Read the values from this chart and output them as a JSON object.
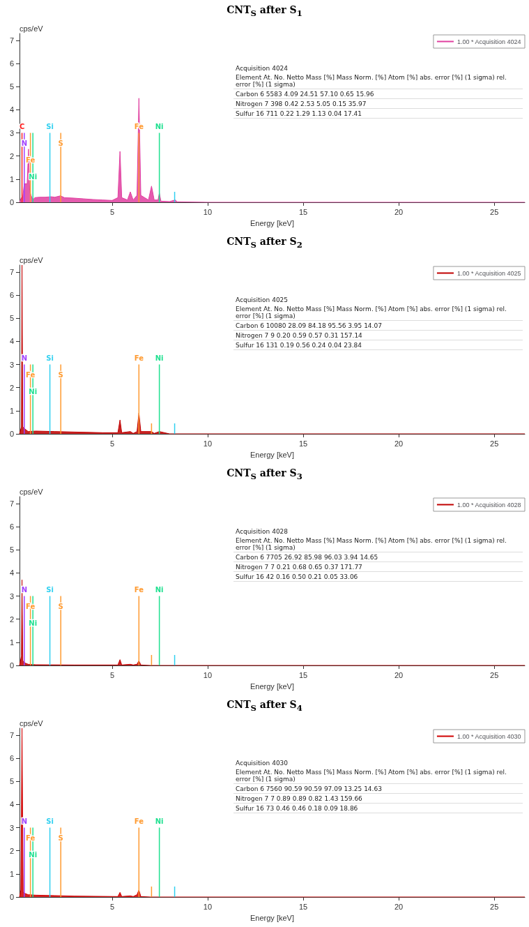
{
  "chart_data": [
    {
      "type": "area",
      "title": "CNT$_{S}$ after S$_{1}$",
      "xlabel": "Energy [keV]",
      "ylabel": "cps/eV",
      "xlim": [
        0.15,
        26.6
      ],
      "xticks": [
        5,
        10,
        15,
        20,
        25
      ],
      "ylim": [
        0,
        7.3
      ],
      "yticks": [
        0,
        1,
        2,
        3,
        4,
        5,
        6,
        7
      ],
      "grid": false,
      "legend": "top right",
      "series": [
        {
          "name": "1.00 * Acquisition 4024",
          "color": "#e040a0",
          "x": [
            0.15,
            0.25,
            0.3,
            0.4,
            0.55,
            0.62,
            0.68,
            0.75,
            0.85,
            0.95,
            1.2,
            1.5,
            1.8,
            2.0,
            2.3,
            2.5,
            3,
            3.5,
            4,
            4.5,
            5.0,
            5.3,
            5.41,
            5.5,
            5.8,
            5.95,
            6.1,
            6.3,
            6.4,
            6.5,
            6.9,
            7.06,
            7.2,
            7.4,
            7.47,
            7.55,
            8,
            8.3,
            8.4,
            10,
            26.6
          ],
          "values": [
            0,
            0.2,
            0.1,
            0.8,
            0.8,
            2.3,
            0.5,
            0.3,
            0.1,
            0.2,
            0.22,
            0.22,
            0.24,
            0.22,
            0.28,
            0.2,
            0.18,
            0.15,
            0.12,
            0.1,
            0.08,
            0.2,
            2.2,
            0.2,
            0.1,
            0.45,
            0.1,
            0.3,
            4.5,
            0.3,
            0.1,
            0.7,
            0.1,
            0.1,
            0.4,
            0.05,
            0.03,
            0.1,
            0.02,
            0,
            0
          ]
        },
        {
          "type": "line",
          "name": "C",
          "color": "#ff2020",
          "x": [
            0.28,
            0.28
          ],
          "values": [
            0,
            3
          ]
        },
        {
          "type": "line",
          "name": "N",
          "color": "#a040ff",
          "x": [
            0.4,
            0.4
          ],
          "values": [
            0,
            3
          ]
        },
        {
          "type": "line",
          "name": "Fe",
          "color": "#ff9a30",
          "x": [
            0.72,
            0.72
          ],
          "values": [
            0,
            3
          ]
        },
        {
          "type": "line",
          "name": "Ni",
          "color": "#20e090",
          "x": [
            0.85,
            0.85
          ],
          "values": [
            0,
            3
          ]
        },
        {
          "type": "line",
          "name": "Si",
          "color": "#30d0f0",
          "x": [
            1.74,
            1.74
          ],
          "values": [
            0,
            3
          ]
        },
        {
          "type": "line",
          "name": "S",
          "color": "#ff9a30",
          "x": [
            2.31,
            2.31
          ],
          "values": [
            0,
            3
          ]
        },
        {
          "type": "line",
          "name": "Fe",
          "color": "#ff9a30",
          "x": [
            6.4,
            6.4
          ],
          "values": [
            0,
            3
          ]
        },
        {
          "type": "line",
          "name": "Ni",
          "color": "#20e090",
          "x": [
            7.47,
            7.47
          ],
          "values": [
            0,
            3
          ]
        },
        {
          "type": "line",
          "color": "#30d0f0",
          "x": [
            8.27,
            8.27
          ],
          "values": [
            0,
            0.45
          ]
        }
      ],
      "annotations": [
        "Acquisition 4024",
        "Element At. No. Netto Mass [%] Mass Norm. [%] Atom [%] abs. error [%] (1 sigma) rel. error [%] (1 sigma)",
        "Carbon 6 5583 4.09 24.51 57.10 0.65 15.96",
        "Nitrogen 7 398 0.42 2.53 5.05 0.15 35.97",
        "Sulfur 16 711 0.22 1.29 1.13 0.04 17.41"
      ]
    },
    {
      "type": "area",
      "title": "CNT$_{S}$ after S$_{2}$",
      "xlabel": "Energy [keV]",
      "ylabel": "cps/eV",
      "xlim": [
        0.15,
        26.6
      ],
      "xticks": [
        5,
        10,
        15,
        20,
        25
      ],
      "ylim": [
        0,
        7.3
      ],
      "yticks": [
        0,
        1,
        2,
        3,
        4,
        5,
        6,
        7
      ],
      "grid": false,
      "legend": "top right",
      "series": [
        {
          "name": "1.00 * Acquisition 4025",
          "color": "#c00000",
          "x": [
            0.15,
            0.25,
            0.28,
            0.32,
            0.45,
            0.6,
            1,
            2,
            3,
            4.5,
            5.3,
            5.41,
            5.5,
            5.95,
            6.1,
            6.3,
            6.4,
            6.5,
            7.06,
            7.2,
            7.47,
            8,
            26.6
          ],
          "values": [
            0,
            0.3,
            7.3,
            0.3,
            0.2,
            0.1,
            0.12,
            0.1,
            0.08,
            0.05,
            0.05,
            0.6,
            0.05,
            0.1,
            0.02,
            0.1,
            0.9,
            0.1,
            0.1,
            0.02,
            0.1,
            0,
            0
          ]
        },
        {
          "type": "line",
          "name": "N",
          "color": "#a040ff",
          "x": [
            0.4,
            0.4
          ],
          "values": [
            0,
            3
          ]
        },
        {
          "type": "line",
          "name": "Fe",
          "color": "#ff9a30",
          "x": [
            0.72,
            0.72
          ],
          "values": [
            0,
            3
          ]
        },
        {
          "type": "line",
          "name": "Ni",
          "color": "#20e090",
          "x": [
            0.85,
            0.85
          ],
          "values": [
            0,
            3
          ]
        },
        {
          "type": "line",
          "name": "Si",
          "color": "#30d0f0",
          "x": [
            1.74,
            1.74
          ],
          "values": [
            0,
            3
          ]
        },
        {
          "type": "line",
          "name": "S",
          "color": "#ff9a30",
          "x": [
            2.31,
            2.31
          ],
          "values": [
            0,
            3
          ]
        },
        {
          "type": "line",
          "name": "Fe",
          "color": "#ff9a30",
          "x": [
            6.4,
            6.4
          ],
          "values": [
            0,
            3
          ]
        },
        {
          "type": "line",
          "name": "Ni",
          "color": "#20e090",
          "x": [
            7.47,
            7.47
          ],
          "values": [
            0,
            3
          ]
        },
        {
          "type": "line",
          "color": "#ff9a30",
          "x": [
            7.06,
            7.06
          ],
          "values": [
            0,
            0.45
          ]
        },
        {
          "type": "line",
          "color": "#30d0f0",
          "x": [
            8.27,
            8.27
          ],
          "values": [
            0,
            0.45
          ]
        }
      ],
      "annotations": [
        "Acquisition 4025",
        "Element At. No. Netto Mass [%] Mass Norm. [%] Atom [%] abs. error [%] (1 sigma) rel. error [%] (1 sigma)",
        "Carbon 6 10080 28.09 84.18 95.56 3.95 14.07",
        "Nitrogen 7 9 0.20 0.59 0.57 0.31 157.14",
        "Sulfur 16 131 0.19 0.56 0.24 0.04 23.84"
      ]
    },
    {
      "type": "area",
      "title": "CNT$_{S}$ after S$_{3}$",
      "xlabel": "Energy [keV]",
      "ylabel": "cps/eV",
      "xlim": [
        0.15,
        26.6
      ],
      "xticks": [
        5,
        10,
        15,
        20,
        25
      ],
      "ylim": [
        0,
        7.3
      ],
      "yticks": [
        0,
        1,
        2,
        3,
        4,
        5,
        6,
        7
      ],
      "grid": false,
      "legend": "top right",
      "series": [
        {
          "name": "1.00 * Acquisition 4028",
          "color": "#c00000",
          "x": [
            0.15,
            0.25,
            0.28,
            0.32,
            0.45,
            0.6,
            1,
            3,
            5.3,
            5.41,
            5.5,
            5.95,
            6.1,
            6.3,
            6.4,
            6.5,
            7,
            26.6
          ],
          "values": [
            0,
            0.4,
            3.7,
            0.2,
            0.1,
            0.05,
            0.03,
            0.02,
            0.02,
            0.25,
            0.02,
            0.05,
            0.02,
            0.05,
            0.2,
            0.02,
            0,
            0
          ]
        },
        {
          "type": "line",
          "name": "N",
          "color": "#a040ff",
          "x": [
            0.4,
            0.4
          ],
          "values": [
            0,
            3
          ]
        },
        {
          "type": "line",
          "name": "Fe",
          "color": "#ff9a30",
          "x": [
            0.72,
            0.72
          ],
          "values": [
            0,
            3
          ]
        },
        {
          "type": "line",
          "name": "Ni",
          "color": "#20e090",
          "x": [
            0.85,
            0.85
          ],
          "values": [
            0,
            3
          ]
        },
        {
          "type": "line",
          "name": "Si",
          "color": "#30d0f0",
          "x": [
            1.74,
            1.74
          ],
          "values": [
            0,
            3
          ]
        },
        {
          "type": "line",
          "name": "S",
          "color": "#ff9a30",
          "x": [
            2.31,
            2.31
          ],
          "values": [
            0,
            3
          ]
        },
        {
          "type": "line",
          "name": "Fe",
          "color": "#ff9a30",
          "x": [
            6.4,
            6.4
          ],
          "values": [
            0,
            3
          ]
        },
        {
          "type": "line",
          "name": "Ni",
          "color": "#20e090",
          "x": [
            7.47,
            7.47
          ],
          "values": [
            0,
            3
          ]
        },
        {
          "type": "line",
          "color": "#ff9a30",
          "x": [
            7.06,
            7.06
          ],
          "values": [
            0,
            0.45
          ]
        },
        {
          "type": "line",
          "color": "#30d0f0",
          "x": [
            8.27,
            8.27
          ],
          "values": [
            0,
            0.45
          ]
        }
      ],
      "annotations": [
        "Acquisition 4028",
        "Element At. No. Netto Mass [%] Mass Norm. [%] Atom [%] abs. error [%] (1 sigma) rel. error [%] (1 sigma)",
        "Carbon 6 7705 26.92 85.98 96.03 3.94 14.65",
        "Nitrogen 7 7 0.21 0.68 0.65 0.37 171.77",
        "Sulfur 16 42 0.16 0.50 0.21 0.05 33.06"
      ]
    },
    {
      "type": "area",
      "title": "CNT$_{S}$ after S$_{4}$",
      "xlabel": "Energy [keV]",
      "ylabel": "cps/eV",
      "xlim": [
        0.15,
        26.6
      ],
      "xticks": [
        5,
        10,
        15,
        20,
        25
      ],
      "ylim": [
        0,
        7.3
      ],
      "yticks": [
        0,
        1,
        2,
        3,
        4,
        5,
        6,
        7
      ],
      "grid": false,
      "legend": "top right",
      "series": [
        {
          "name": "1.00 * Acquisition 4030",
          "color": "#d00000",
          "x": [
            0.15,
            0.22,
            0.28,
            0.34,
            0.45,
            0.6,
            1,
            2,
            3,
            5.3,
            5.41,
            5.5,
            5.95,
            6.1,
            6.3,
            6.4,
            6.5,
            7,
            26.6
          ],
          "values": [
            0,
            0.3,
            7.3,
            0.2,
            0.15,
            0.1,
            0.08,
            0.06,
            0.04,
            0.02,
            0.2,
            0.02,
            0.05,
            0.02,
            0.1,
            0.3,
            0.02,
            0,
            0
          ]
        },
        {
          "type": "line",
          "name": "N",
          "color": "#a040ff",
          "x": [
            0.4,
            0.4
          ],
          "values": [
            0,
            3
          ]
        },
        {
          "type": "line",
          "name": "Fe",
          "color": "#ff9a30",
          "x": [
            0.72,
            0.72
          ],
          "values": [
            0,
            3
          ]
        },
        {
          "type": "line",
          "name": "Ni",
          "color": "#20e090",
          "x": [
            0.85,
            0.85
          ],
          "values": [
            0,
            3
          ]
        },
        {
          "type": "line",
          "name": "Si",
          "color": "#30d0f0",
          "x": [
            1.74,
            1.74
          ],
          "values": [
            0,
            3
          ]
        },
        {
          "type": "line",
          "name": "S",
          "color": "#ff9a30",
          "x": [
            2.31,
            2.31
          ],
          "values": [
            0,
            3
          ]
        },
        {
          "type": "line",
          "name": "Fe",
          "color": "#ff9a30",
          "x": [
            6.4,
            6.4
          ],
          "values": [
            0,
            3
          ]
        },
        {
          "type": "line",
          "name": "Ni",
          "color": "#20e090",
          "x": [
            7.47,
            7.47
          ],
          "values": [
            0,
            3
          ]
        },
        {
          "type": "line",
          "color": "#ff9a30",
          "x": [
            7.06,
            7.06
          ],
          "values": [
            0,
            0.45
          ]
        },
        {
          "type": "line",
          "color": "#30d0f0",
          "x": [
            8.27,
            8.27
          ],
          "values": [
            0,
            0.45
          ]
        }
      ],
      "annotations": [
        "Acquisition 4030",
        "Element At. No. Netto Mass [%] Mass Norm. [%] Atom [%] abs. error [%] (1 sigma) rel. error [%] (1 sigma)",
        "Carbon 6 7560 90.59 90.59 97.09 13.25 14.63",
        "Nitrogen 7 7 0.89 0.89 0.82 1.43 159.66",
        "Sulfur 16 73 0.46 0.46 0.18 0.09 18.86"
      ]
    }
  ]
}
